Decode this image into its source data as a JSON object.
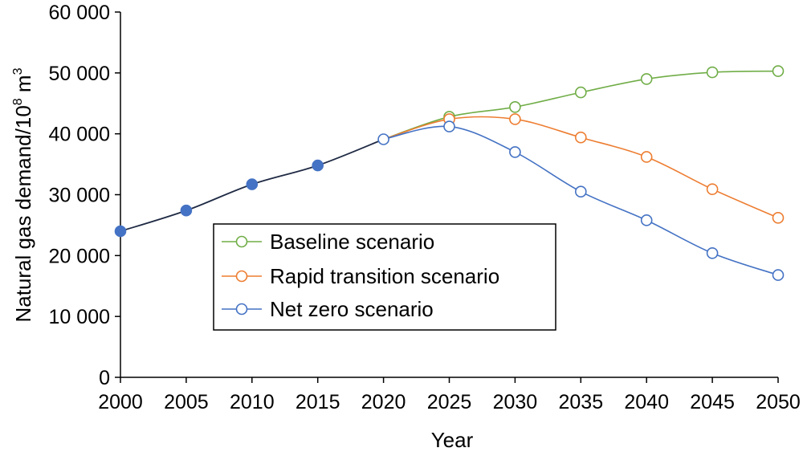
{
  "chart_data": {
    "type": "line",
    "title": "",
    "xlabel": "Year",
    "ylabel": "Natural gas demand/10",
    "ylabel_sup": "8",
    "ylabel_unit": " m",
    "ylabel_unit_sup": "3",
    "x": [
      2000,
      2005,
      2010,
      2015,
      2020,
      2025,
      2030,
      2035,
      2040,
      2045,
      2050
    ],
    "x_tick_labels": [
      "2000",
      "2005",
      "2010",
      "2015",
      "2020",
      "2025",
      "2030",
      "2035",
      "2040",
      "2045",
      "2050"
    ],
    "xlim": [
      2000,
      2050
    ],
    "ylim": [
      0,
      60000
    ],
    "y_ticks": [
      0,
      10000,
      20000,
      30000,
      40000,
      50000,
      60000
    ],
    "y_tick_labels": [
      "0",
      "10 000",
      "20 000",
      "30 000",
      "40 000",
      "50 000",
      "60 000"
    ],
    "grid": false,
    "legend_position": "center-left",
    "historical": {
      "x": [
        2000,
        2005,
        2010,
        2015,
        2020
      ],
      "values": [
        24000,
        27400,
        31700,
        34800,
        39100
      ],
      "color": "#4472c4",
      "line_color": "#1f2a44",
      "marker": "filled-circle"
    },
    "series": [
      {
        "name": "Baseline scenario",
        "color": "#70ad47",
        "x": [
          2020,
          2025,
          2030,
          2035,
          2040,
          2045,
          2050
        ],
        "values": [
          39100,
          42800,
          44400,
          46800,
          49000,
          50100,
          50300
        ]
      },
      {
        "name": "Rapid transition scenario",
        "color": "#ed7d31",
        "x": [
          2020,
          2025,
          2030,
          2035,
          2040,
          2045,
          2050
        ],
        "values": [
          39100,
          42400,
          42400,
          39400,
          36200,
          30900,
          26200
        ]
      },
      {
        "name": "Net zero scenario",
        "color": "#4472c4",
        "x": [
          2020,
          2025,
          2030,
          2035,
          2040,
          2045,
          2050
        ],
        "values": [
          39100,
          41200,
          37000,
          30500,
          25800,
          20400,
          16800
        ]
      }
    ]
  }
}
